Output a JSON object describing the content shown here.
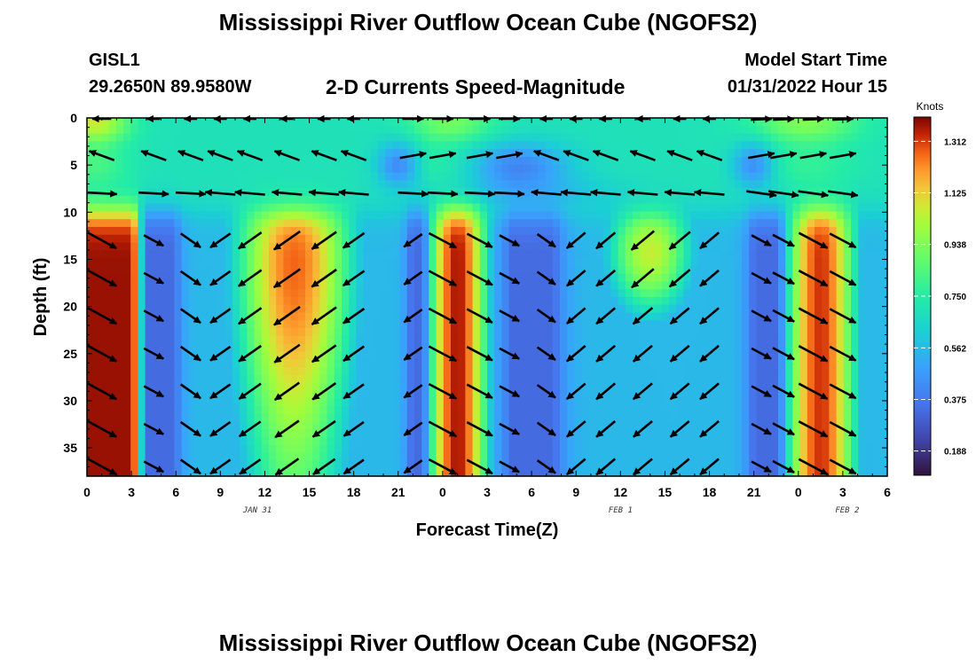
{
  "page": {
    "title": "Mississippi River Outflow Ocean Cube (NGOFS2)",
    "station_id": "GISL1",
    "station_coords": "29.2650N  89.9580W",
    "subtitle": "2-D Currents Speed-Magnitude",
    "model_start_label": "Model Start Time",
    "model_start_value": "01/31/2022 Hour 15",
    "bottom_title": "Mississippi River Outflow Ocean Cube (NGOFS2)"
  },
  "chart_data": {
    "type": "heatmap",
    "xlabel": "Forecast Time(Z)",
    "ylabel": "Depth (ft)",
    "xlim": [
      0,
      54
    ],
    "ylim": [
      38,
      0
    ],
    "x_ticks": [
      {
        "v": 0,
        "label": "0"
      },
      {
        "v": 3,
        "label": "3"
      },
      {
        "v": 6,
        "label": "6"
      },
      {
        "v": 9,
        "label": "9"
      },
      {
        "v": 12,
        "label": "12"
      },
      {
        "v": 15,
        "label": "15"
      },
      {
        "v": 18,
        "label": "18"
      },
      {
        "v": 21,
        "label": "21"
      },
      {
        "v": 24,
        "label": "0"
      },
      {
        "v": 27,
        "label": "3"
      },
      {
        "v": 30,
        "label": "6"
      },
      {
        "v": 33,
        "label": "9"
      },
      {
        "v": 36,
        "label": "12"
      },
      {
        "v": 39,
        "label": "15"
      },
      {
        "v": 42,
        "label": "18"
      },
      {
        "v": 45,
        "label": "21"
      },
      {
        "v": 48,
        "label": "0"
      },
      {
        "v": 51,
        "label": "3"
      },
      {
        "v": 54,
        "label": "6"
      }
    ],
    "date_labels": [
      {
        "v": 11.5,
        "label": "JAN 31"
      },
      {
        "v": 36,
        "label": "FEB 1"
      },
      {
        "v": 51.3,
        "label": "FEB 2"
      }
    ],
    "y_ticks": [
      0,
      5,
      10,
      15,
      20,
      25,
      30,
      35
    ],
    "colorbar": {
      "unit": "Knots",
      "min": 0.1,
      "max": 1.4,
      "ticks": [
        "1.312",
        "1.125",
        "0.938",
        "0.750",
        "0.562",
        "0.375",
        "0.188"
      ]
    },
    "arrow_times": [
      1,
      4.5,
      7,
      9,
      11,
      13.5,
      16,
      18,
      22,
      24,
      26.5,
      28.5,
      31,
      33,
      35,
      37.5,
      40,
      42,
      45.5,
      47,
      49,
      51
    ],
    "arrow_depths": [
      0,
      4,
      8,
      13,
      17,
      21,
      25,
      29,
      33,
      37
    ],
    "surface_peak_times": [
      0.5,
      24.5,
      48.5
    ],
    "deep_peak_times": [
      1.5,
      14,
      25,
      38,
      49.5
    ]
  }
}
